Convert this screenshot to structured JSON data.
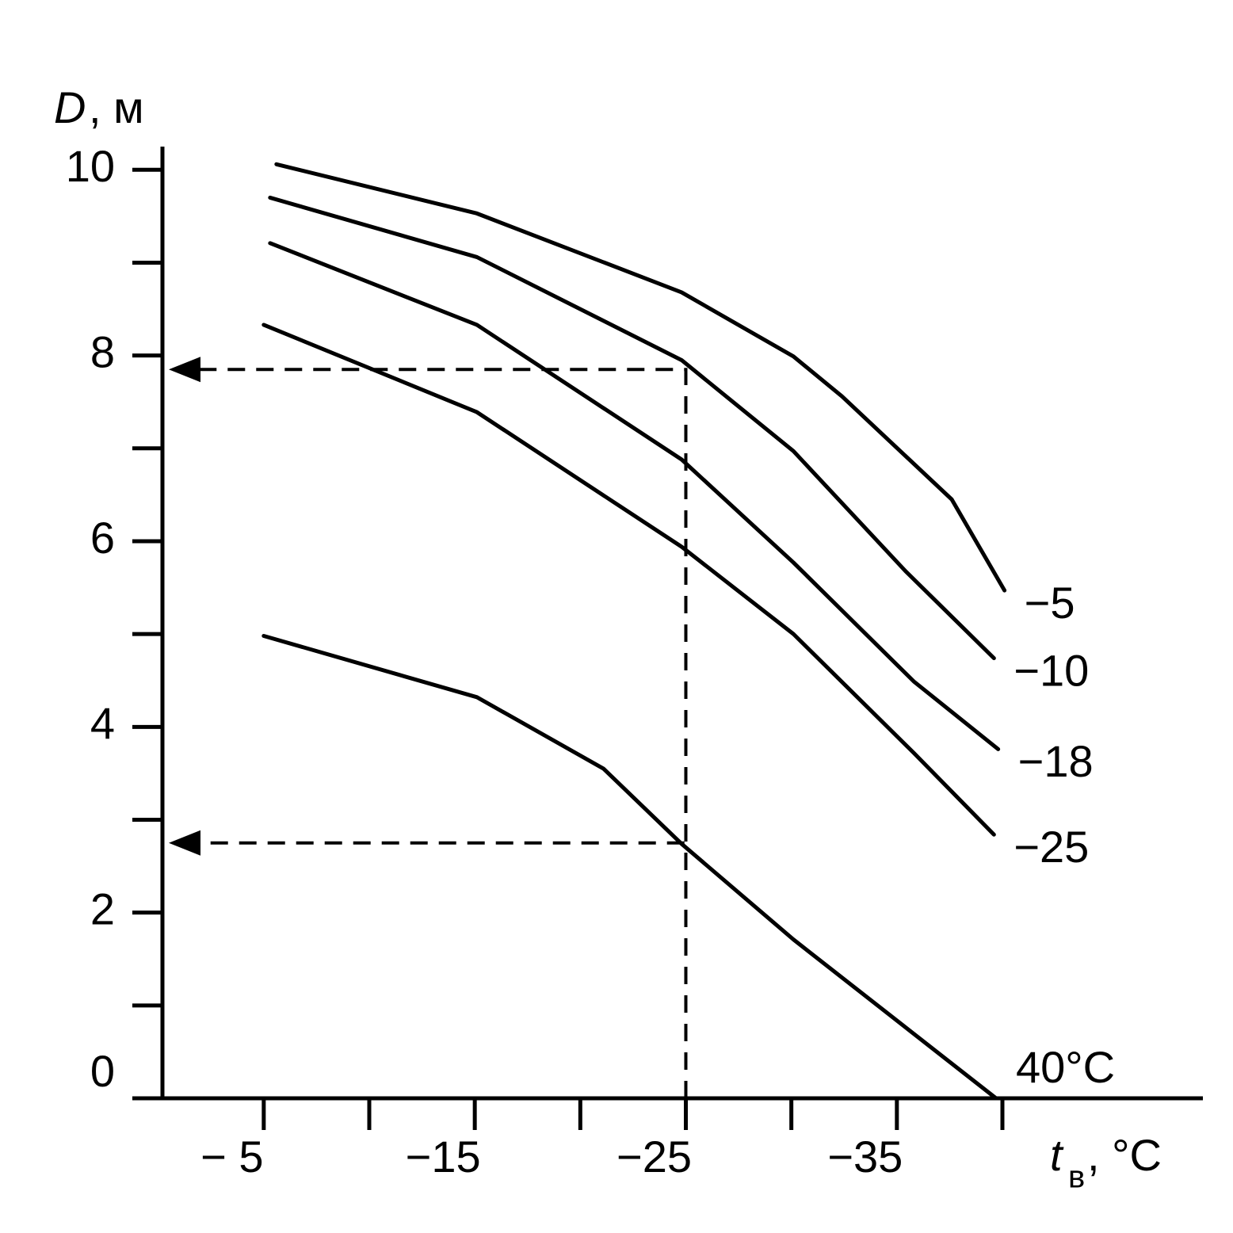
{
  "chart_data": {
    "type": "line",
    "y_label": {
      "symbol": "D",
      "unit": ", м"
    },
    "x_label": {
      "symbol": "t",
      "subscript": "в",
      "unit": ", °C"
    },
    "xlim": [
      -0.2,
      -49.5
    ],
    "ylim": [
      0,
      10.25
    ],
    "xticks": [
      {
        "value": -5,
        "label": "− 5"
      },
      {
        "value": -15,
        "label": "−15"
      },
      {
        "value": -25,
        "label": "−25"
      },
      {
        "value": -35,
        "label": "−35"
      }
    ],
    "xminorticks": [
      -10,
      -20,
      -30,
      -40
    ],
    "yticks": [
      0,
      2,
      4,
      6,
      8,
      10
    ],
    "yminorticks": [
      1,
      3,
      5,
      7,
      9
    ],
    "reference_lines": [
      {
        "x": -25,
        "y": 7.85
      },
      {
        "x": -25,
        "y": 2.75
      }
    ],
    "series": [
      {
        "name": "−5",
        "color": "#000000",
        "x": [
          -5.6,
          -15.1,
          -24.8,
          -30.1,
          -32.4,
          -37.6,
          -40.1
        ],
        "values": [
          10.06,
          9.53,
          8.68,
          7.99,
          7.56,
          6.45,
          5.47
        ]
      },
      {
        "name": "−10",
        "color": "#000000",
        "x": [
          -5.3,
          -15.1,
          -24.8,
          -30.1,
          -35.4,
          -39.6
        ],
        "values": [
          9.7,
          9.06,
          7.95,
          6.97,
          5.68,
          4.74
        ]
      },
      {
        "name": "−18",
        "color": "#000000",
        "x": [
          -5.3,
          -15.1,
          -24.8,
          -30.1,
          -35.8,
          -39.8
        ],
        "values": [
          9.21,
          8.33,
          6.88,
          5.77,
          4.49,
          3.76
        ]
      },
      {
        "name": "−25",
        "color": "#000000",
        "x": [
          -5.0,
          -15.1,
          -24.8,
          -30.1,
          -35.8,
          -39.6
        ],
        "values": [
          8.33,
          7.39,
          5.94,
          5.0,
          3.72,
          2.84
        ]
      },
      {
        "name": "40°C",
        "color": "#000000",
        "x": [
          -5.0,
          -15.1,
          -21.1,
          -24.8,
          -30.1,
          -39.7
        ],
        "values": [
          4.98,
          4.32,
          3.55,
          2.74,
          1.71,
          0.0
        ]
      }
    ]
  }
}
